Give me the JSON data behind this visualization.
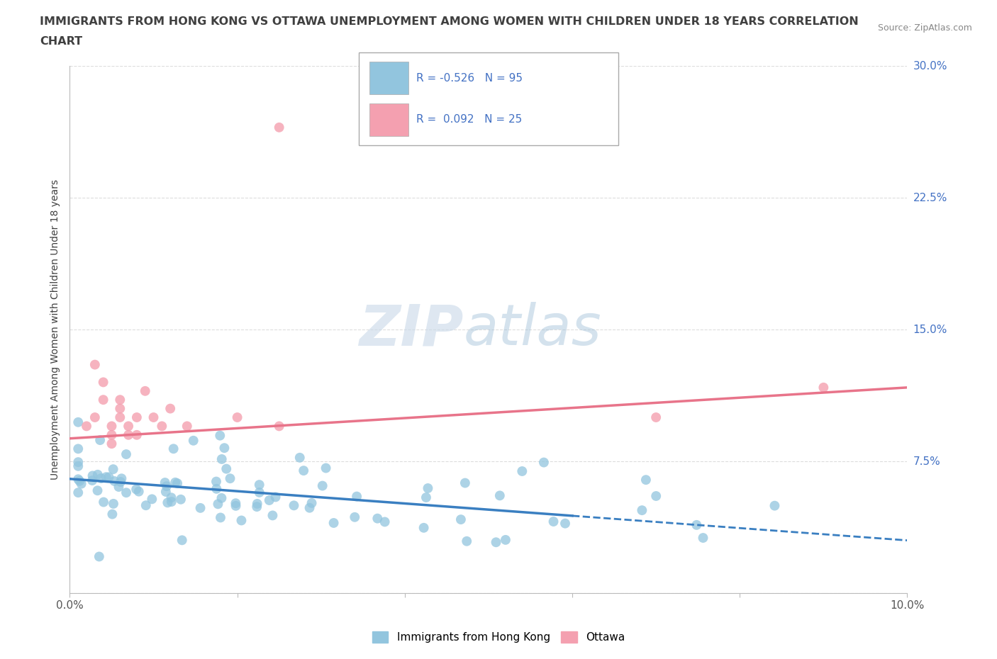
{
  "title_line1": "IMMIGRANTS FROM HONG KONG VS OTTAWA UNEMPLOYMENT AMONG WOMEN WITH CHILDREN UNDER 18 YEARS CORRELATION",
  "title_line2": "CHART",
  "source": "Source: ZipAtlas.com",
  "ylabel": "Unemployment Among Women with Children Under 18 years",
  "xlim": [
    0.0,
    0.1
  ],
  "ylim": [
    0.0,
    0.3
  ],
  "ytick_vals": [
    0.075,
    0.15,
    0.225,
    0.3
  ],
  "ytick_labels": [
    "7.5%",
    "15.0%",
    "22.5%",
    "30.0%"
  ],
  "xtick_labels_left": "0.0%",
  "xtick_labels_right": "10.0%",
  "blue_R": -0.526,
  "blue_N": 95,
  "pink_R": 0.092,
  "pink_N": 25,
  "blue_scatter_color": "#92C5DE",
  "pink_scatter_color": "#F4A0B0",
  "blue_line_color": "#3A7FC1",
  "pink_line_color": "#E8748A",
  "legend_text_color": "#4472C4",
  "watermark_zip_color": "#C8D8E8",
  "watermark_atlas_color": "#A0C0D8",
  "legend_label_blue": "Immigrants from Hong Kong",
  "legend_label_pink": "Ottawa",
  "title_color": "#404040",
  "ylabel_color": "#404040",
  "source_color": "#888888",
  "grid_color": "#DDDDDD",
  "axis_color": "#BBBBBB",
  "blue_line_y0": 0.065,
  "blue_line_y1": 0.03,
  "blue_line_x0": 0.0,
  "blue_line_x1": 0.1,
  "pink_line_y0": 0.088,
  "pink_line_y1": 0.117,
  "pink_line_x0": 0.0,
  "pink_line_x1": 0.1
}
